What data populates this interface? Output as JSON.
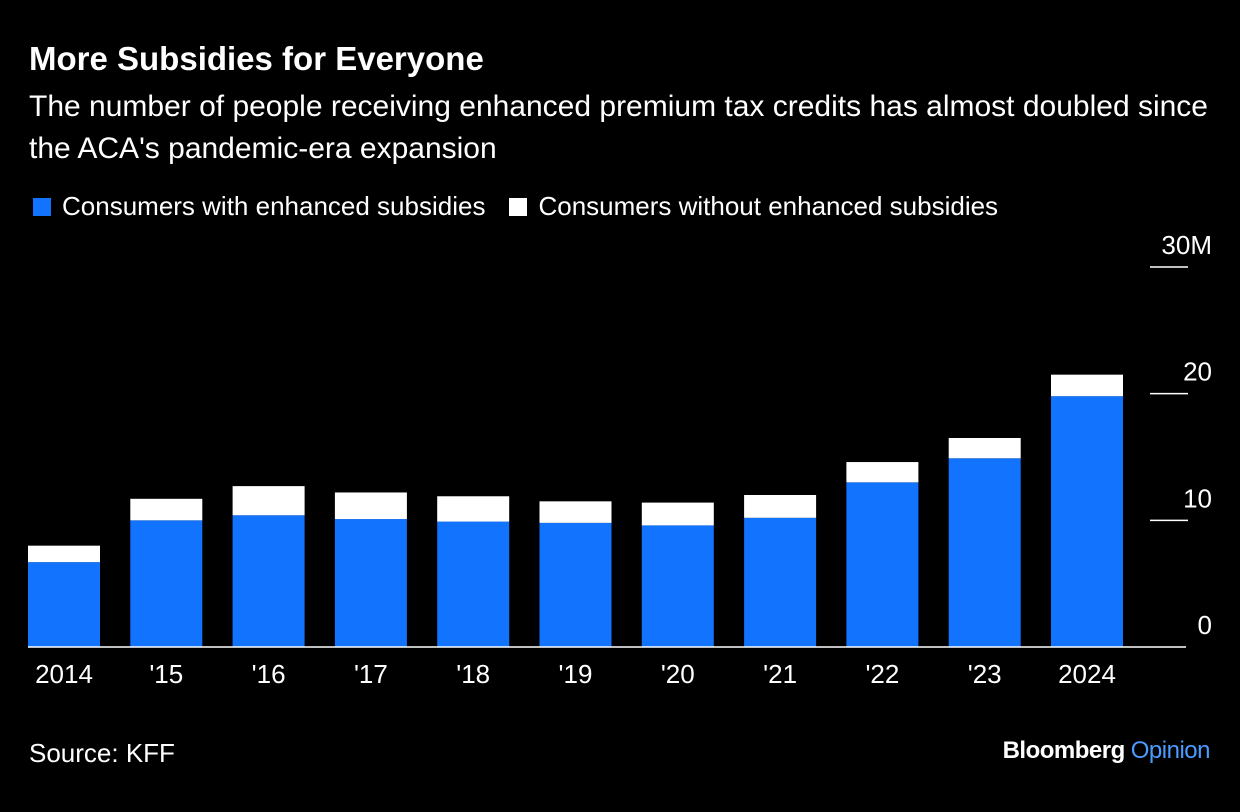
{
  "chart_data": {
    "type": "bar",
    "stacked": true,
    "title": "More Subsidies for Everyone",
    "subtitle": "The number of people receiving enhanced premium tax credits has almost doubled since the ACA's pandemic-era expansion",
    "categories": [
      "2014",
      "'15",
      "'16",
      "'17",
      "'18",
      "'19",
      "'20",
      "'21",
      "'22",
      "'23",
      "2024"
    ],
    "series": [
      {
        "name": "Consumers with enhanced subsidies",
        "color": "#1273ff",
        "values": [
          6.7,
          10.0,
          10.4,
          10.1,
          9.9,
          9.8,
          9.6,
          10.2,
          13.0,
          14.9,
          19.8
        ]
      },
      {
        "name": "Consumers without enhanced subsidies",
        "color": "#ffffff",
        "values": [
          1.3,
          1.7,
          2.3,
          2.1,
          2.0,
          1.7,
          1.8,
          1.8,
          1.6,
          1.6,
          1.7
        ]
      }
    ],
    "y_ticks": [
      "0",
      "10",
      "20",
      "30M"
    ],
    "y_tick_values": [
      0,
      10,
      20,
      30
    ],
    "ylim": [
      0,
      30
    ],
    "y_axis_position": "right",
    "grid": false,
    "legend_position": "top-left",
    "xlabel": "",
    "ylabel": ""
  },
  "source": "Source: KFF",
  "brand": {
    "name": "Bloomberg",
    "suffix": "Opinion"
  }
}
